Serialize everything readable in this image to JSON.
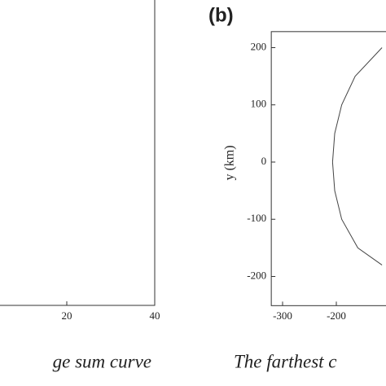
{
  "chart_data": [
    {
      "type": "line",
      "caption": "ge sum curve",
      "xlim": [
        0,
        40
      ],
      "xticks": [
        20,
        40
      ]
    },
    {
      "type": "line",
      "panel_label": "(b)",
      "caption": "The farthest c",
      "ylabel": "y (km)",
      "xlim": [
        -321,
        400
      ],
      "xticks": [
        -300,
        -200
      ],
      "ylim": [
        -251,
        228
      ],
      "yticks": [
        200,
        100,
        0,
        -100,
        -200
      ],
      "x": [
        -115,
        -165,
        -190,
        -203,
        -207,
        -203,
        -190,
        -160,
        -115
      ],
      "series": [
        {
          "color": "#444444",
          "values": [
            200,
            150,
            100,
            50,
            0,
            -50,
            -100,
            -150,
            -180
          ]
        }
      ]
    }
  ]
}
